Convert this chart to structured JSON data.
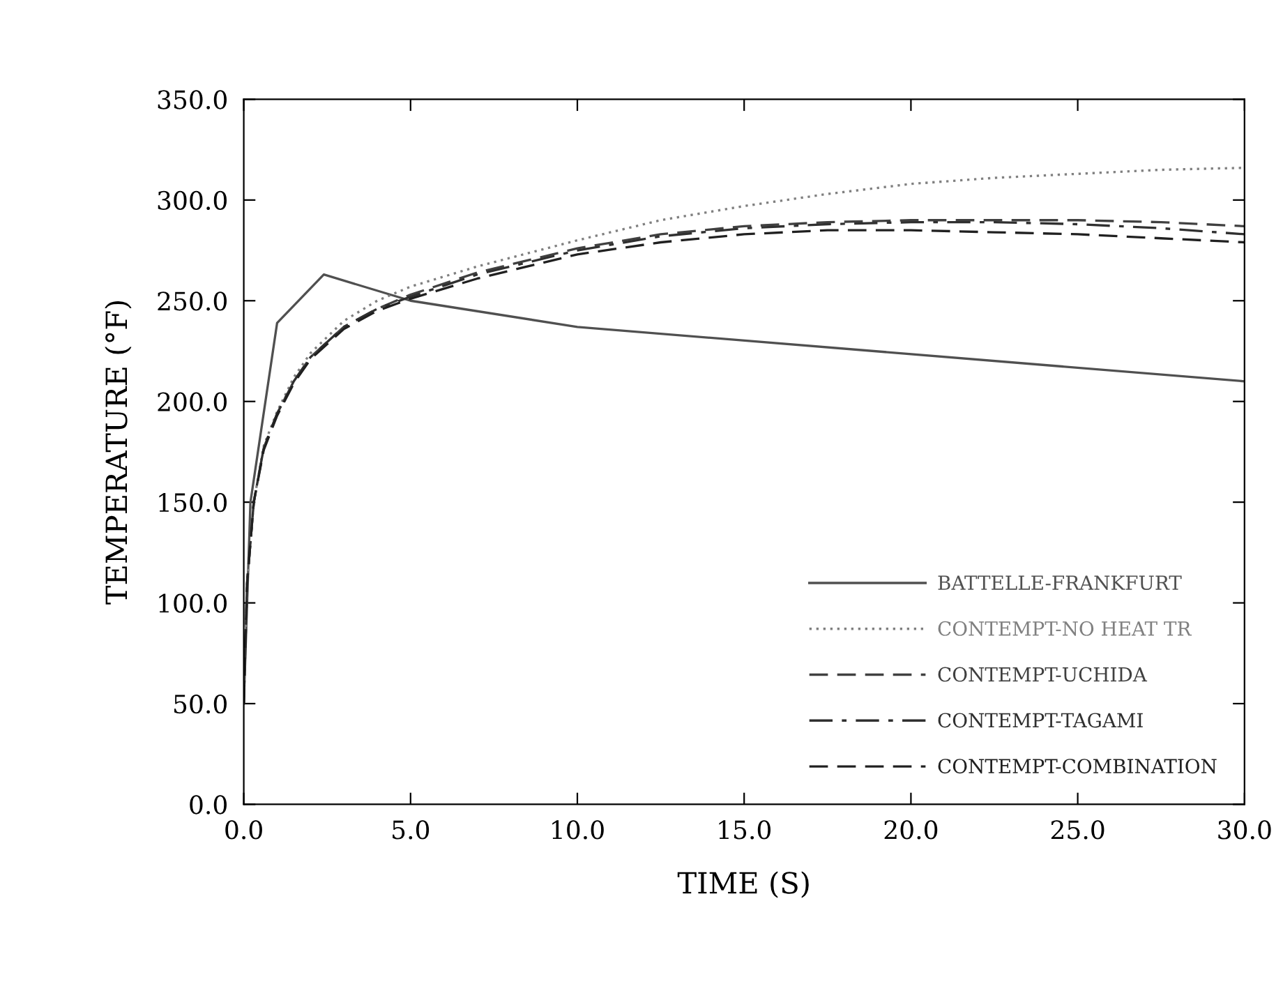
{
  "chart_data": {
    "type": "line",
    "xlabel": "TIME (S)",
    "ylabel": "TEMPERATURE (°F)",
    "xlim": [
      0,
      30
    ],
    "ylim": [
      0,
      350
    ],
    "xticks": [
      {
        "value": 0,
        "label": "0.0"
      },
      {
        "value": 5,
        "label": "5.0"
      },
      {
        "value": 10,
        "label": "10.0"
      },
      {
        "value": 15,
        "label": "15.0"
      },
      {
        "value": 20,
        "label": "20.0"
      },
      {
        "value": 25,
        "label": "25.0"
      },
      {
        "value": 30,
        "label": "30.0"
      }
    ],
    "yticks": [
      {
        "value": 0,
        "label": "0.0"
      },
      {
        "value": 50,
        "label": "50.0"
      },
      {
        "value": 100,
        "label": "100.0"
      },
      {
        "value": 150,
        "label": "150.0"
      },
      {
        "value": 200,
        "label": "200.0"
      },
      {
        "value": 250,
        "label": "250.0"
      },
      {
        "value": 300,
        "label": "300.0"
      },
      {
        "value": 350,
        "label": "350.0"
      }
    ],
    "grid": false,
    "legend": "bottom right",
    "marker": "none",
    "series": [
      {
        "name": "BATTELLE-FRANKFURT",
        "color": "#505050",
        "line_style": "solid",
        "x": [
          0,
          0.2,
          1.0,
          2.4,
          5,
          10,
          30
        ],
        "values": [
          50,
          150,
          239,
          263,
          250,
          237,
          210
        ]
      },
      {
        "name": "CONTEMPT-NO HEAT TR",
        "color": "#808080",
        "line_style": "dotted",
        "x": [
          0,
          0.1,
          0.3,
          0.6,
          1,
          1.5,
          2,
          3,
          4,
          5,
          7,
          10,
          12.5,
          15,
          17.5,
          20,
          22.5,
          25,
          27.5,
          30
        ],
        "values": [
          50,
          110,
          150,
          178,
          195,
          212,
          224,
          240,
          250,
          257,
          267,
          280,
          290,
          297,
          303,
          308,
          311,
          313,
          315,
          316
        ]
      },
      {
        "name": "CONTEMPT-UCHIDA",
        "color": "#404040",
        "line_style": "dashed",
        "x": [
          0,
          0.1,
          0.3,
          0.6,
          1,
          1.5,
          2,
          3,
          4,
          5,
          7,
          10,
          12.5,
          15,
          17.5,
          20,
          22.5,
          25,
          27.5,
          30
        ],
        "values": [
          50,
          110,
          150,
          177,
          194,
          210,
          222,
          237,
          246,
          253,
          264,
          276,
          283,
          287,
          289,
          290,
          290,
          290,
          289,
          287
        ]
      },
      {
        "name": "CONTEMPT-TAGAMI",
        "color": "#303030",
        "line_style": "dashdot",
        "x": [
          0,
          0.1,
          0.3,
          0.6,
          1,
          1.5,
          2,
          3,
          4,
          5,
          7,
          10,
          12.5,
          15,
          17.5,
          20,
          22.5,
          25,
          27.5,
          30
        ],
        "values": [
          50,
          110,
          150,
          177,
          194,
          210,
          222,
          237,
          246,
          252,
          263,
          275,
          282,
          286,
          288,
          289,
          289,
          288,
          286,
          283
        ]
      },
      {
        "name": "CONTEMPT-COMBINATION",
        "color": "#202020",
        "line_style": "dashed",
        "x": [
          0,
          0.1,
          0.3,
          0.6,
          1,
          1.5,
          2,
          3,
          4,
          5,
          7,
          10,
          12.5,
          15,
          17.5,
          20,
          22.5,
          25,
          27.5,
          30
        ],
        "values": [
          50,
          110,
          150,
          176,
          193,
          209,
          221,
          236,
          245,
          251,
          261,
          273,
          279,
          283,
          285,
          285,
          284,
          283,
          281,
          279
        ]
      }
    ]
  }
}
